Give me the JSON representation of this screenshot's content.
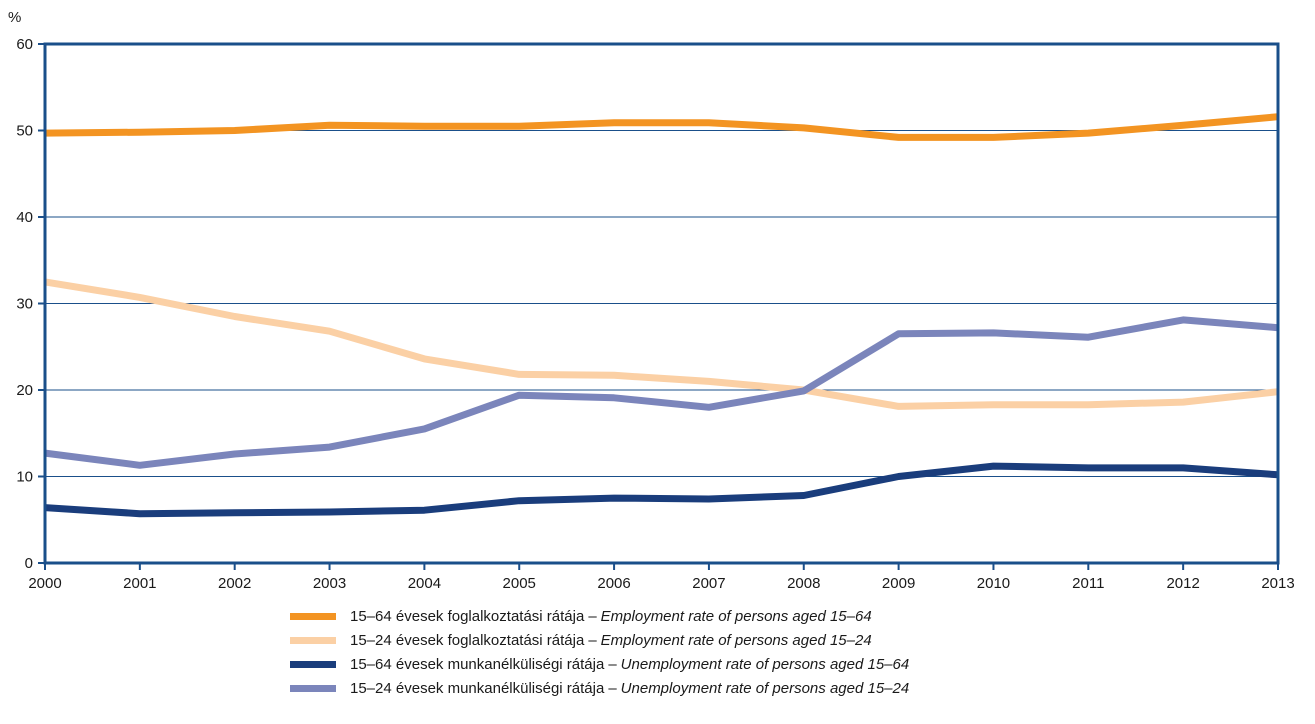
{
  "chart_data": {
    "type": "line",
    "ylabel": "%",
    "ylim": [
      0,
      60
    ],
    "yticks": [
      "0",
      "10",
      "20",
      "30",
      "40",
      "50",
      "60"
    ],
    "x": [
      "2000",
      "2001",
      "2002",
      "2003",
      "2004",
      "2005",
      "2006",
      "2007",
      "2008",
      "2009",
      "2010",
      "2011",
      "2012",
      "2013"
    ],
    "grid": true,
    "legend_position": "bottom",
    "series": [
      {
        "name_hu": "15–64 évesek foglalkoztatási rátája",
        "name_en": "Employment rate of persons aged 15–64",
        "color": "#f39422",
        "values": [
          49.7,
          49.8,
          50.0,
          50.6,
          50.5,
          50.5,
          50.9,
          50.9,
          50.3,
          49.2,
          49.2,
          49.7,
          50.6,
          51.6
        ]
      },
      {
        "name_hu": "15–24 évesek foglalkoztatási rátája",
        "name_en": "Employment rate of persons aged 15–24",
        "color": "#fbd0a5",
        "values": [
          32.5,
          30.7,
          28.5,
          26.8,
          23.6,
          21.8,
          21.7,
          21.0,
          20.0,
          18.1,
          18.3,
          18.3,
          18.6,
          19.8
        ]
      },
      {
        "name_hu": "15–64 évesek munkanélküliségi rátája",
        "name_en": "Unemployment rate of persons aged 15–64",
        "color": "#1a3d7c",
        "values": [
          6.4,
          5.7,
          5.8,
          5.9,
          6.1,
          7.2,
          7.5,
          7.4,
          7.8,
          10.0,
          11.2,
          11.0,
          11.0,
          10.2
        ]
      },
      {
        "name_hu": "15–24 évesek munkanélküliségi rátája",
        "name_en": "Unemployment rate of persons aged 15–24",
        "color": "#7b85bb",
        "values": [
          12.7,
          11.3,
          12.6,
          13.4,
          15.5,
          19.4,
          19.1,
          18.0,
          19.9,
          26.5,
          26.6,
          26.1,
          28.1,
          27.2
        ]
      }
    ]
  },
  "legend_separator": "–",
  "colors": {
    "axis": "#1a4f8a",
    "grid": "#1a4f8a"
  }
}
